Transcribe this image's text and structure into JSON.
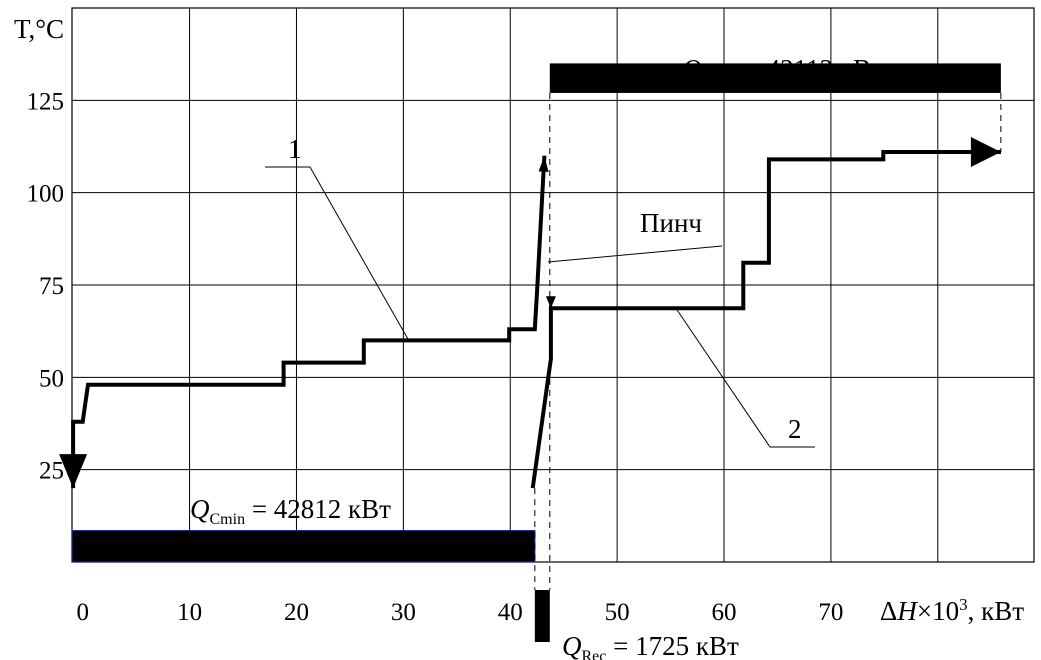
{
  "chart_data": {
    "type": "line",
    "title": "",
    "xlabel": "ΔH×10³, кВт",
    "ylabel": "T,°C",
    "x_ticks": [
      "0",
      "10",
      "20",
      "30",
      "40",
      "50",
      "60",
      "70"
    ],
    "y_ticks": [
      "25",
      "50",
      "75",
      "100",
      "125"
    ],
    "xlim": [
      -1,
      89
    ],
    "ylim": [
      0,
      150
    ],
    "grid": true,
    "series": [
      {
        "name": "1",
        "points": [
          [
            43.2,
            110
          ],
          [
            42.5,
            73
          ],
          [
            42.3,
            63
          ],
          [
            39.9,
            63
          ],
          [
            39.9,
            60
          ],
          [
            26.3,
            60
          ],
          [
            26.3,
            54
          ],
          [
            18.8,
            54
          ],
          [
            18.8,
            48
          ],
          [
            0.5,
            48
          ],
          [
            0.0,
            38
          ],
          [
            -0.9,
            38
          ],
          [
            -0.9,
            20
          ]
        ]
      },
      {
        "name": "2",
        "points": [
          [
            42.1,
            20
          ],
          [
            43.8,
            55
          ],
          [
            43.8,
            68.7
          ],
          [
            61.8,
            68.7
          ],
          [
            61.8,
            81
          ],
          [
            64.2,
            81
          ],
          [
            64.2,
            109
          ],
          [
            74.9,
            109
          ],
          [
            74.9,
            111
          ],
          [
            85.9,
            111
          ]
        ]
      }
    ],
    "bars": [
      {
        "label": "Q_Cmin",
        "value": "42812",
        "unit": "кВт",
        "x": [
          -1,
          42.3
        ]
      },
      {
        "label": "Q_Hmin",
        "value": "42112",
        "unit": "кВт",
        "x": [
          43.7,
          85.9
        ]
      },
      {
        "label": "Q_Rec",
        "value": "1725",
        "unit": "кВт",
        "x": [
          42.3,
          43.7
        ]
      }
    ],
    "annotations": {
      "curve1": "1",
      "curve2": "2",
      "pinch": "Пинч",
      "q_hmin": {
        "sym": "Q",
        "sub": "Hmin",
        "rest": " = 42112 кВт"
      },
      "q_cmin": {
        "sym": "Q",
        "sub": "Cmin",
        "rest": " = 42812 кВт"
      },
      "q_rec": {
        "sym": "Q",
        "sub": "Rec",
        "rest": " = 1725 кВт"
      },
      "ylabel_text": "T,°C",
      "xlabel_delta": "Δ",
      "xlabel_h": "H",
      "xlabel_times": "×10",
      "xlabel_exp": "3",
      "xlabel_unit": ", кВт"
    }
  }
}
